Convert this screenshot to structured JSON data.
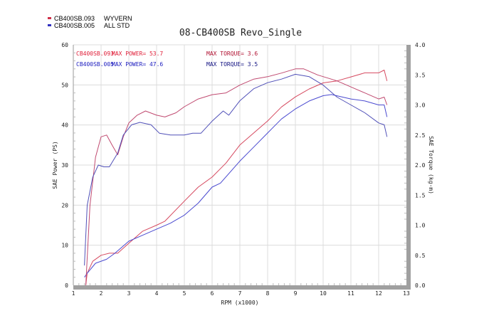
{
  "chart_data": {
    "type": "line",
    "title": "08-CB400SB Revo_Single",
    "xlabel": "RPM (x1000)",
    "ylabel": "SAE Power (PS)",
    "y2label": "SAE Torque (kg-m)",
    "xlim": [
      1,
      13
    ],
    "ylim": [
      0,
      60
    ],
    "y2lim": [
      0,
      4.0
    ],
    "xticks": [
      "1",
      "2",
      "3",
      "4",
      "5",
      "6",
      "7",
      "8",
      "9",
      "10",
      "11",
      "12",
      "13"
    ],
    "yticks": [
      "0",
      "10",
      "20",
      "30",
      "40",
      "50",
      "60"
    ],
    "y2ticks": [
      "0.0",
      "0.5",
      "1.0",
      "1.5",
      "2.0",
      "2.5",
      "3.0",
      "3.5",
      "4.0"
    ],
    "grid": true,
    "legend": [
      {
        "id": "CB400SB.093",
        "desc": "WYVERN",
        "color": "#d0304a"
      },
      {
        "id": "CB400SB.005",
        "desc": "ALL STD",
        "color": "#3030c0"
      }
    ],
    "annotations": [
      {
        "run": "CB400SB.093",
        "power_label": "MAX POWER= 53.7",
        "torque_label": "MAX TORQUE= 3.6",
        "color": "#e0203a"
      },
      {
        "run": "CB400SB.005",
        "power_label": "MAX POWER= 47.6",
        "torque_label": "MAX TORQUE= 3.5",
        "color": "#2020c0"
      }
    ],
    "series": [
      {
        "name": "CB400SB.093 power",
        "axis": "power",
        "color": "#d64a60",
        "x": [
          1.45,
          1.5,
          1.7,
          2.0,
          2.3,
          2.6,
          3.0,
          3.5,
          4.0,
          4.3,
          5.0,
          5.5,
          6.0,
          6.5,
          7.0,
          7.5,
          8.0,
          8.5,
          9.0,
          9.5,
          10.0,
          10.5,
          11.0,
          11.5,
          12.0,
          12.2,
          12.3
        ],
        "y": [
          0,
          3,
          6,
          7.5,
          8,
          8,
          10.5,
          13.5,
          15,
          16,
          21,
          24.5,
          27,
          30.5,
          35,
          38,
          41,
          44.5,
          47,
          49,
          50.5,
          51,
          52,
          53,
          53,
          53.7,
          51
        ]
      },
      {
        "name": "CB400SB.005 power",
        "axis": "power",
        "color": "#4a4ad0",
        "x": [
          1.4,
          1.5,
          1.8,
          2.2,
          2.5,
          3.0,
          3.5,
          4.0,
          4.5,
          5.0,
          5.5,
          6.0,
          6.3,
          7.0,
          7.5,
          8.0,
          8.5,
          9.0,
          9.5,
          10.0,
          10.3,
          11.0,
          11.5,
          12.0,
          12.2,
          12.3
        ],
        "y": [
          2,
          3,
          5.5,
          6.5,
          8,
          11,
          12.5,
          14,
          15.5,
          17.5,
          20.5,
          24.5,
          25.5,
          31,
          34.5,
          38,
          41.5,
          44,
          46,
          47.3,
          47.6,
          46.5,
          46,
          45,
          45,
          42
        ]
      },
      {
        "name": "CB400SB.093 torque",
        "axis": "torque",
        "color": "#c04a70",
        "x": [
          1.45,
          1.6,
          1.8,
          2.0,
          2.2,
          2.4,
          2.6,
          2.8,
          3.0,
          3.3,
          3.6,
          4.0,
          4.3,
          4.7,
          5.0,
          5.5,
          6.0,
          6.5,
          7.0,
          7.5,
          8.0,
          8.5,
          9.0,
          9.3,
          9.8,
          10.5,
          11.0,
          11.5,
          12.0,
          12.2,
          12.3
        ],
        "y": [
          0,
          1.33,
          2.13,
          2.47,
          2.5,
          2.33,
          2.17,
          2.47,
          2.7,
          2.83,
          2.9,
          2.83,
          2.8,
          2.87,
          2.97,
          3.1,
          3.17,
          3.2,
          3.33,
          3.43,
          3.47,
          3.53,
          3.6,
          3.6,
          3.5,
          3.4,
          3.3,
          3.2,
          3.1,
          3.13,
          3.0
        ]
      },
      {
        "name": "CB400SB.005 torque",
        "axis": "torque",
        "color": "#5050b8",
        "x": [
          1.4,
          1.5,
          1.7,
          1.9,
          2.1,
          2.3,
          2.6,
          2.8,
          3.1,
          3.4,
          3.8,
          4.1,
          4.5,
          5.0,
          5.3,
          5.6,
          6.0,
          6.4,
          6.6,
          7.0,
          7.5,
          8.0,
          8.5,
          9.0,
          9.5,
          10.0,
          10.5,
          11.0,
          11.5,
          12.0,
          12.2,
          12.3
        ],
        "y": [
          0.33,
          1.33,
          1.8,
          2.0,
          1.97,
          1.97,
          2.2,
          2.5,
          2.67,
          2.71,
          2.67,
          2.53,
          2.5,
          2.5,
          2.53,
          2.53,
          2.73,
          2.9,
          2.83,
          3.07,
          3.27,
          3.37,
          3.43,
          3.51,
          3.47,
          3.33,
          3.13,
          3.0,
          2.87,
          2.7,
          2.67,
          2.47
        ]
      }
    ]
  }
}
